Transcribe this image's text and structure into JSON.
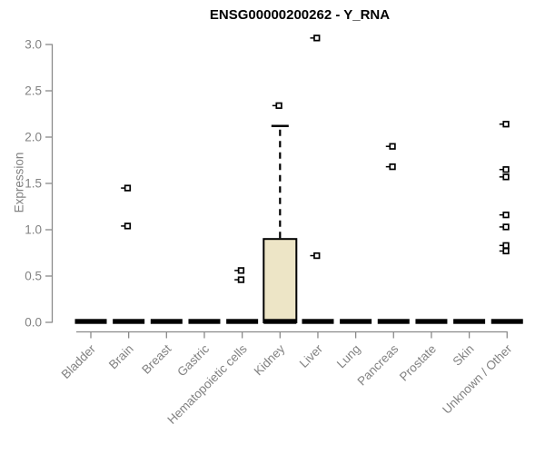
{
  "chart_data": {
    "type": "boxplot",
    "title": "ENSG00000200262 - Y_RNA",
    "ylabel": "Expression",
    "xlabel": "",
    "ylim": [
      0,
      3
    ],
    "yticks": [
      "0.0",
      "0.5",
      "1.0",
      "1.5",
      "2.0",
      "2.5",
      "3.0"
    ],
    "grid": false,
    "legend": null,
    "categories": [
      "Bladder",
      "Brain",
      "Breast",
      "Gastric",
      "Hematopoietic cells",
      "Kidney",
      "Liver",
      "Lung",
      "Pancreas",
      "Prostate",
      "Skin",
      "Unknown / Other"
    ],
    "boxes": [
      {
        "category": "Bladder",
        "q1": 0,
        "median": 0,
        "q3": 0,
        "whisker_low": 0,
        "whisker_high": 0,
        "outliers": []
      },
      {
        "category": "Brain",
        "q1": 0,
        "median": 0,
        "q3": 0,
        "whisker_low": 0,
        "whisker_high": 0,
        "outliers": [
          1.45,
          1.04
        ]
      },
      {
        "category": "Breast",
        "q1": 0,
        "median": 0,
        "q3": 0,
        "whisker_low": 0,
        "whisker_high": 0,
        "outliers": []
      },
      {
        "category": "Gastric",
        "q1": 0,
        "median": 0,
        "q3": 0,
        "whisker_low": 0,
        "whisker_high": 0,
        "outliers": []
      },
      {
        "category": "Hematopoietic cells",
        "q1": 0,
        "median": 0,
        "q3": 0,
        "whisker_low": 0,
        "whisker_high": 0,
        "outliers": [
          0.56,
          0.46
        ]
      },
      {
        "category": "Kidney",
        "q1": 0,
        "median": 0,
        "q3": 0.9,
        "whisker_low": 0,
        "whisker_high": 2.12,
        "outliers": [
          2.34
        ]
      },
      {
        "category": "Liver",
        "q1": 0,
        "median": 0,
        "q3": 0,
        "whisker_low": 0,
        "whisker_high": 0,
        "outliers": [
          3.07,
          0.72
        ]
      },
      {
        "category": "Lung",
        "q1": 0,
        "median": 0,
        "q3": 0,
        "whisker_low": 0,
        "whisker_high": 0,
        "outliers": []
      },
      {
        "category": "Pancreas",
        "q1": 0,
        "median": 0,
        "q3": 0,
        "whisker_low": 0,
        "whisker_high": 0,
        "outliers": [
          1.9,
          1.68
        ]
      },
      {
        "category": "Prostate",
        "q1": 0,
        "median": 0,
        "q3": 0,
        "whisker_low": 0,
        "whisker_high": 0,
        "outliers": []
      },
      {
        "category": "Skin",
        "q1": 0,
        "median": 0,
        "q3": 0,
        "whisker_low": 0,
        "whisker_high": 0,
        "outliers": []
      },
      {
        "category": "Unknown / Other",
        "q1": 0,
        "median": 0,
        "q3": 0,
        "whisker_low": 0,
        "whisker_high": 0,
        "outliers": [
          2.14,
          1.65,
          1.57,
          1.16,
          1.03,
          0.83,
          0.77
        ]
      }
    ],
    "colors": {
      "background": "#FFFFFF",
      "box_fill": "#EDE5C6",
      "box_stroke": "#000000",
      "median": "#000000",
      "marker": "#000000",
      "axis_line": "#8A8A8A",
      "tick_label": "#828282",
      "title": "#000000"
    }
  }
}
